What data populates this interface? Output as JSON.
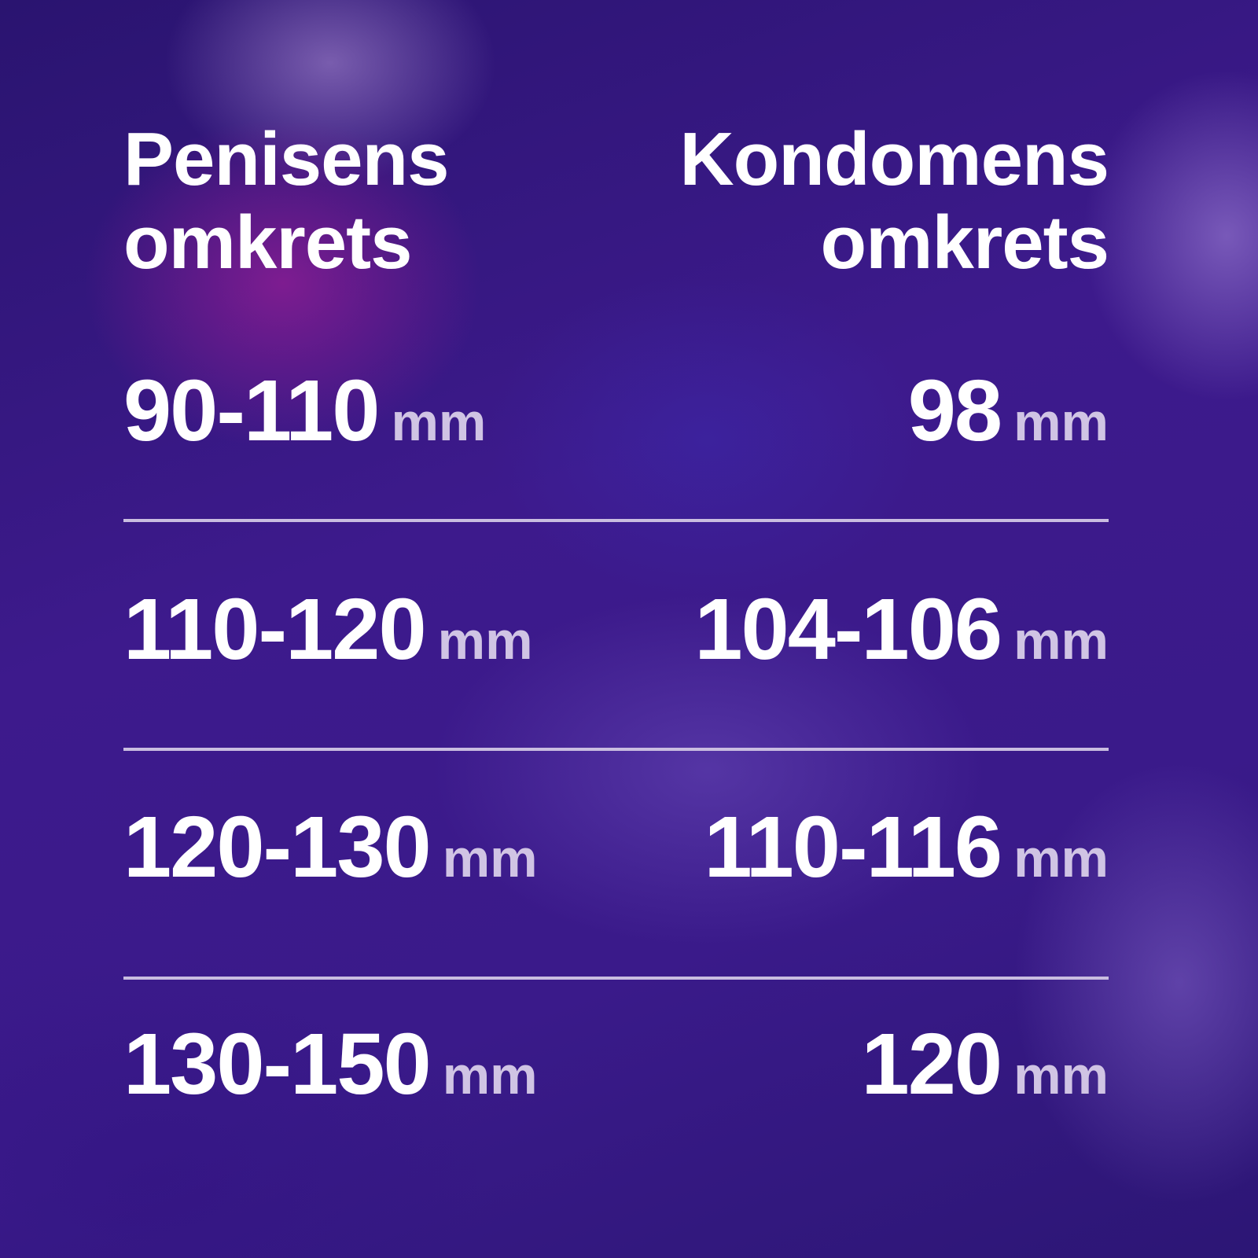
{
  "headers": {
    "left": [
      "Penisens",
      "omkrets"
    ],
    "right": [
      "Kondomens",
      "omkrets"
    ]
  },
  "unit": "mm",
  "rows": [
    {
      "penis": "90-110",
      "condom": "98"
    },
    {
      "penis": "110-120",
      "condom": "104-106"
    },
    {
      "penis": "120-130",
      "condom": "110-116"
    },
    {
      "penis": "130-150",
      "condom": "120"
    }
  ],
  "colors": {
    "text": "#ffffff",
    "unit": "#d0c4e4",
    "rule": "#c9bde0",
    "background": "#3a1a8a"
  }
}
